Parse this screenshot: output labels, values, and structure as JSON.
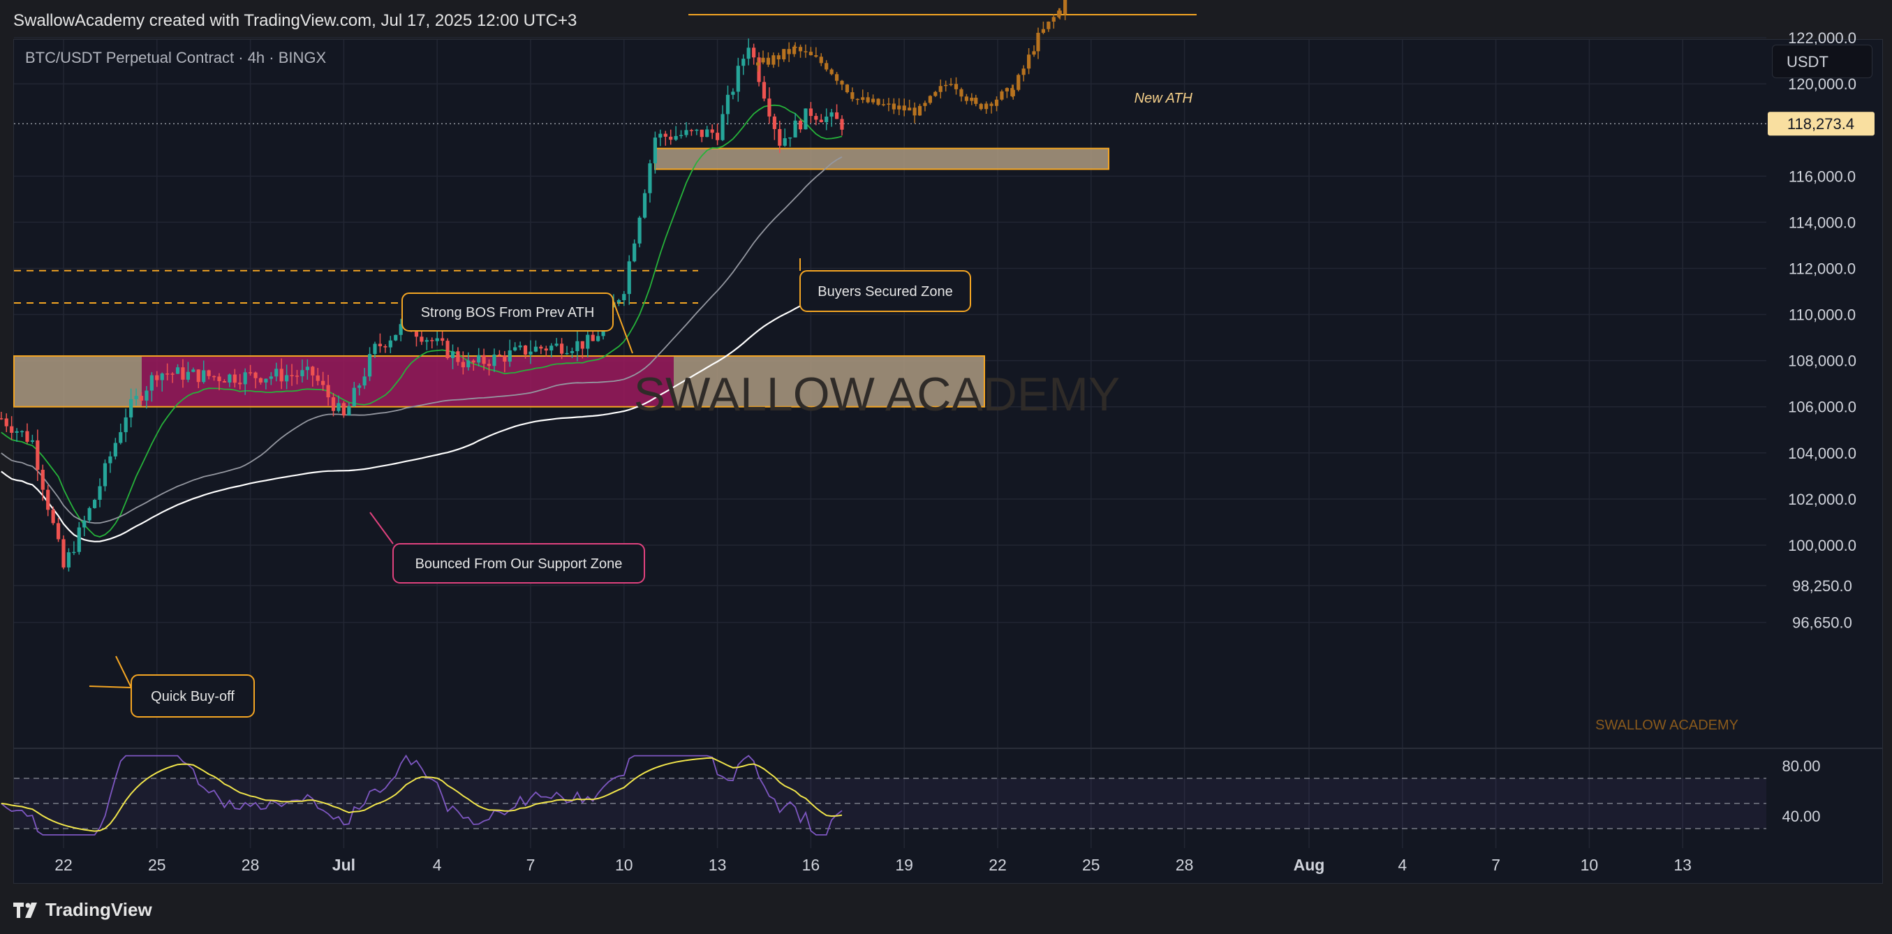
{
  "header": {
    "attribution": "SwallowAcademy created with TradingView.com, Jul 17, 2025 12:00 UTC+3"
  },
  "symbol": {
    "label": "BTC/USDT Perpetual Contract · 4h · BINGX"
  },
  "currency_button": {
    "label": "USDT"
  },
  "footer": {
    "logo_text": "TradingView"
  },
  "watermark": {
    "center": "SWALLOW ACADEMY",
    "corner": "SWALLOW ACADEMY"
  },
  "colors": {
    "background": "#131722",
    "candle_up": "#26a69a",
    "candle_down": "#ef5350",
    "projection": "#b8731f",
    "zone_fill": "#ad9a80",
    "zone_magenta": "#9c1a5d",
    "zone_border": "#f5a623",
    "ema_fast": "#26b33a",
    "ma_mid": "#9598a1",
    "ma_slow": "#ffffff",
    "rsi": "#7e57c2",
    "rsi_signal": "#f2e64b",
    "price_tag": "#f9dfa0"
  },
  "chart_data": {
    "type": "candlestick",
    "timeframe": "4h",
    "x_ticks": [
      "22",
      "25",
      "28",
      "Jul",
      "4",
      "7",
      "10",
      "13",
      "16",
      "19",
      "22",
      "25",
      "28",
      "Aug",
      "4",
      "7",
      "10",
      "13"
    ],
    "y_ticks": [
      122000.0,
      120000.0,
      116000.0,
      114000.0,
      112000.0,
      110000.0,
      108000.0,
      106000.0,
      104000.0,
      102000.0,
      100000.0,
      98250.0,
      96650.0
    ],
    "y_tick_labels": [
      "122,000.0",
      "120,000.0",
      "116,000.0",
      "114,000.0",
      "112,000.0",
      "110,000.0",
      "108,000.0",
      "106,000.0",
      "104,000.0",
      "102,000.0",
      "100,000.0",
      "98,250.0",
      "96,650.0"
    ],
    "current_price": 118273.4,
    "current_price_label": "118,273.4",
    "key_closes": [
      {
        "date": "Jun 20",
        "close": 105500
      },
      {
        "date": "Jun 21",
        "close": 104500
      },
      {
        "date": "Jun 22",
        "close": 99000
      },
      {
        "date": "Jun 23",
        "close": 102000
      },
      {
        "date": "Jun 24",
        "close": 105700
      },
      {
        "date": "Jun 25",
        "close": 107500
      },
      {
        "date": "Jun 27",
        "close": 107300
      },
      {
        "date": "Jun 30",
        "close": 107400
      },
      {
        "date": "Jul 1",
        "close": 105500
      },
      {
        "date": "Jul 2",
        "close": 108500
      },
      {
        "date": "Jul 3",
        "close": 109600
      },
      {
        "date": "Jul 5",
        "close": 107800
      },
      {
        "date": "Jul 7",
        "close": 108500
      },
      {
        "date": "Jul 9",
        "close": 108800
      },
      {
        "date": "Jul 10",
        "close": 111200
      },
      {
        "date": "Jul 11",
        "close": 117700
      },
      {
        "date": "Jul 13",
        "close": 117900
      },
      {
        "date": "Jul 14",
        "close": 121800
      },
      {
        "date": "Jul 15",
        "close": 117500
      },
      {
        "date": "Jul 16",
        "close": 118800
      },
      {
        "date": "Jul 17",
        "close": 118273.4
      }
    ],
    "projection_path": [
      {
        "date": "Jul 14.3",
        "close": 120800
      },
      {
        "date": "Jul 15.5",
        "close": 121500
      },
      {
        "date": "Jul 16.5",
        "close": 120800
      },
      {
        "date": "Jul 17.5",
        "close": 119300
      },
      {
        "date": "Jul 18.5",
        "close": 119000
      },
      {
        "date": "Jul 19.5",
        "close": 118800
      },
      {
        "date": "Jul 20.5",
        "close": 120200
      },
      {
        "date": "Jul 21.3",
        "close": 119000
      },
      {
        "date": "Jul 22.5",
        "close": 119700
      },
      {
        "date": "Jul 23.3",
        "close": 122000
      },
      {
        "date": "Jul 24.0",
        "close": 123200
      },
      {
        "date": "Jul 24.4",
        "close": 126000
      }
    ],
    "zones": [
      {
        "name": "Support zone",
        "from": 106000,
        "to": 108200
      },
      {
        "name": "Buyers Secured Zone",
        "from": 116300,
        "to": 117200
      }
    ],
    "levels": [
      {
        "name": "New ATH",
        "price": 123000
      },
      {
        "name": "Prev ATH upper",
        "price": 111900
      },
      {
        "name": "Prev ATH lower",
        "price": 110500
      }
    ],
    "annotations": [
      "Strong BOS From Prev ATH",
      "Buyers Secured Zone",
      "Bounced From Our Support Zone",
      "Quick Buy-off",
      "New ATH"
    ],
    "rsi": {
      "ticks": [
        80.0,
        40.0
      ],
      "tick_labels": [
        "80.00",
        "40.00"
      ],
      "band_levels": [
        70,
        50,
        30
      ]
    }
  }
}
